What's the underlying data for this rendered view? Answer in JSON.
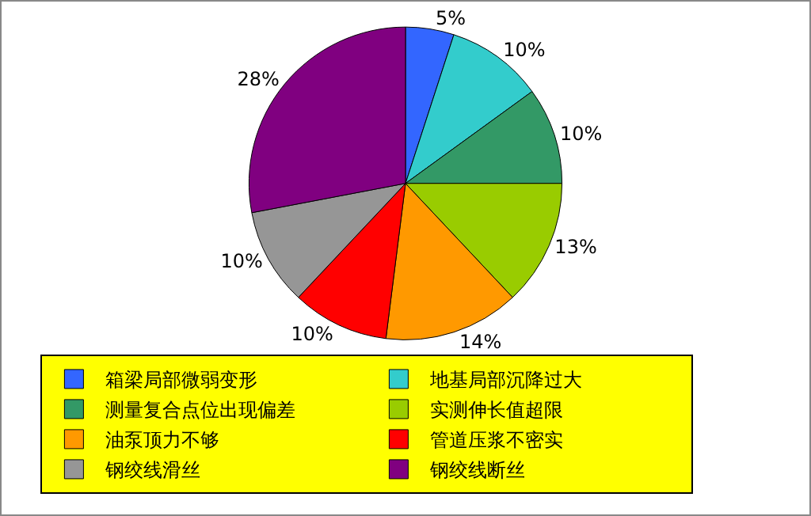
{
  "chart_data": {
    "type": "pie",
    "categories": [
      "箱梁局部微弱变形",
      "地基局部沉降过大",
      "测量复合点位出现偏差",
      "实测伸长值超限",
      "油泵顶力不够",
      "管道压浆不密实",
      "钢绞线滑丝",
      "钢绞线断丝"
    ],
    "values": [
      5,
      10,
      10,
      13,
      14,
      10,
      10,
      28
    ],
    "colors": [
      "#3366ff",
      "#33cccc",
      "#339966",
      "#99cc00",
      "#ff9900",
      "#ff0000",
      "#969696",
      "#800080"
    ],
    "value_labels": [
      "5%",
      "10%",
      "10%",
      "13%",
      "14%",
      "10%",
      "10%",
      "28%"
    ],
    "legend": "bottom"
  }
}
